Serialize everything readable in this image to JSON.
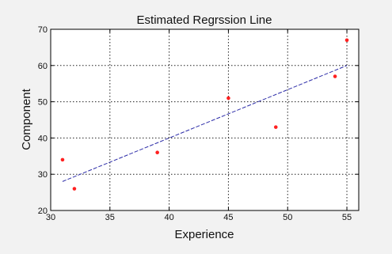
{
  "chart_data": {
    "type": "scatter",
    "title": "Estimated Regrssion Line",
    "xlabel": "Experience",
    "ylabel": "Component",
    "xlim": [
      30,
      56
    ],
    "ylim": [
      20,
      70
    ],
    "xticks": [
      30,
      35,
      40,
      45,
      50,
      55
    ],
    "yticks": [
      20,
      30,
      40,
      50,
      60,
      70
    ],
    "grid": true,
    "series": [
      {
        "type": "scatter",
        "x": [
          31,
          32,
          39,
          45,
          49,
          54,
          55
        ],
        "y": [
          34,
          26,
          36,
          51,
          43,
          57,
          67
        ]
      },
      {
        "type": "line",
        "style": "dashed",
        "x": [
          31,
          55
        ],
        "y": [
          28,
          60
        ]
      }
    ],
    "colors": {
      "points": "#ff2020",
      "fit_line": "#2c2ca8",
      "grid": "#222222",
      "plot_background": "#ffffff"
    }
  }
}
